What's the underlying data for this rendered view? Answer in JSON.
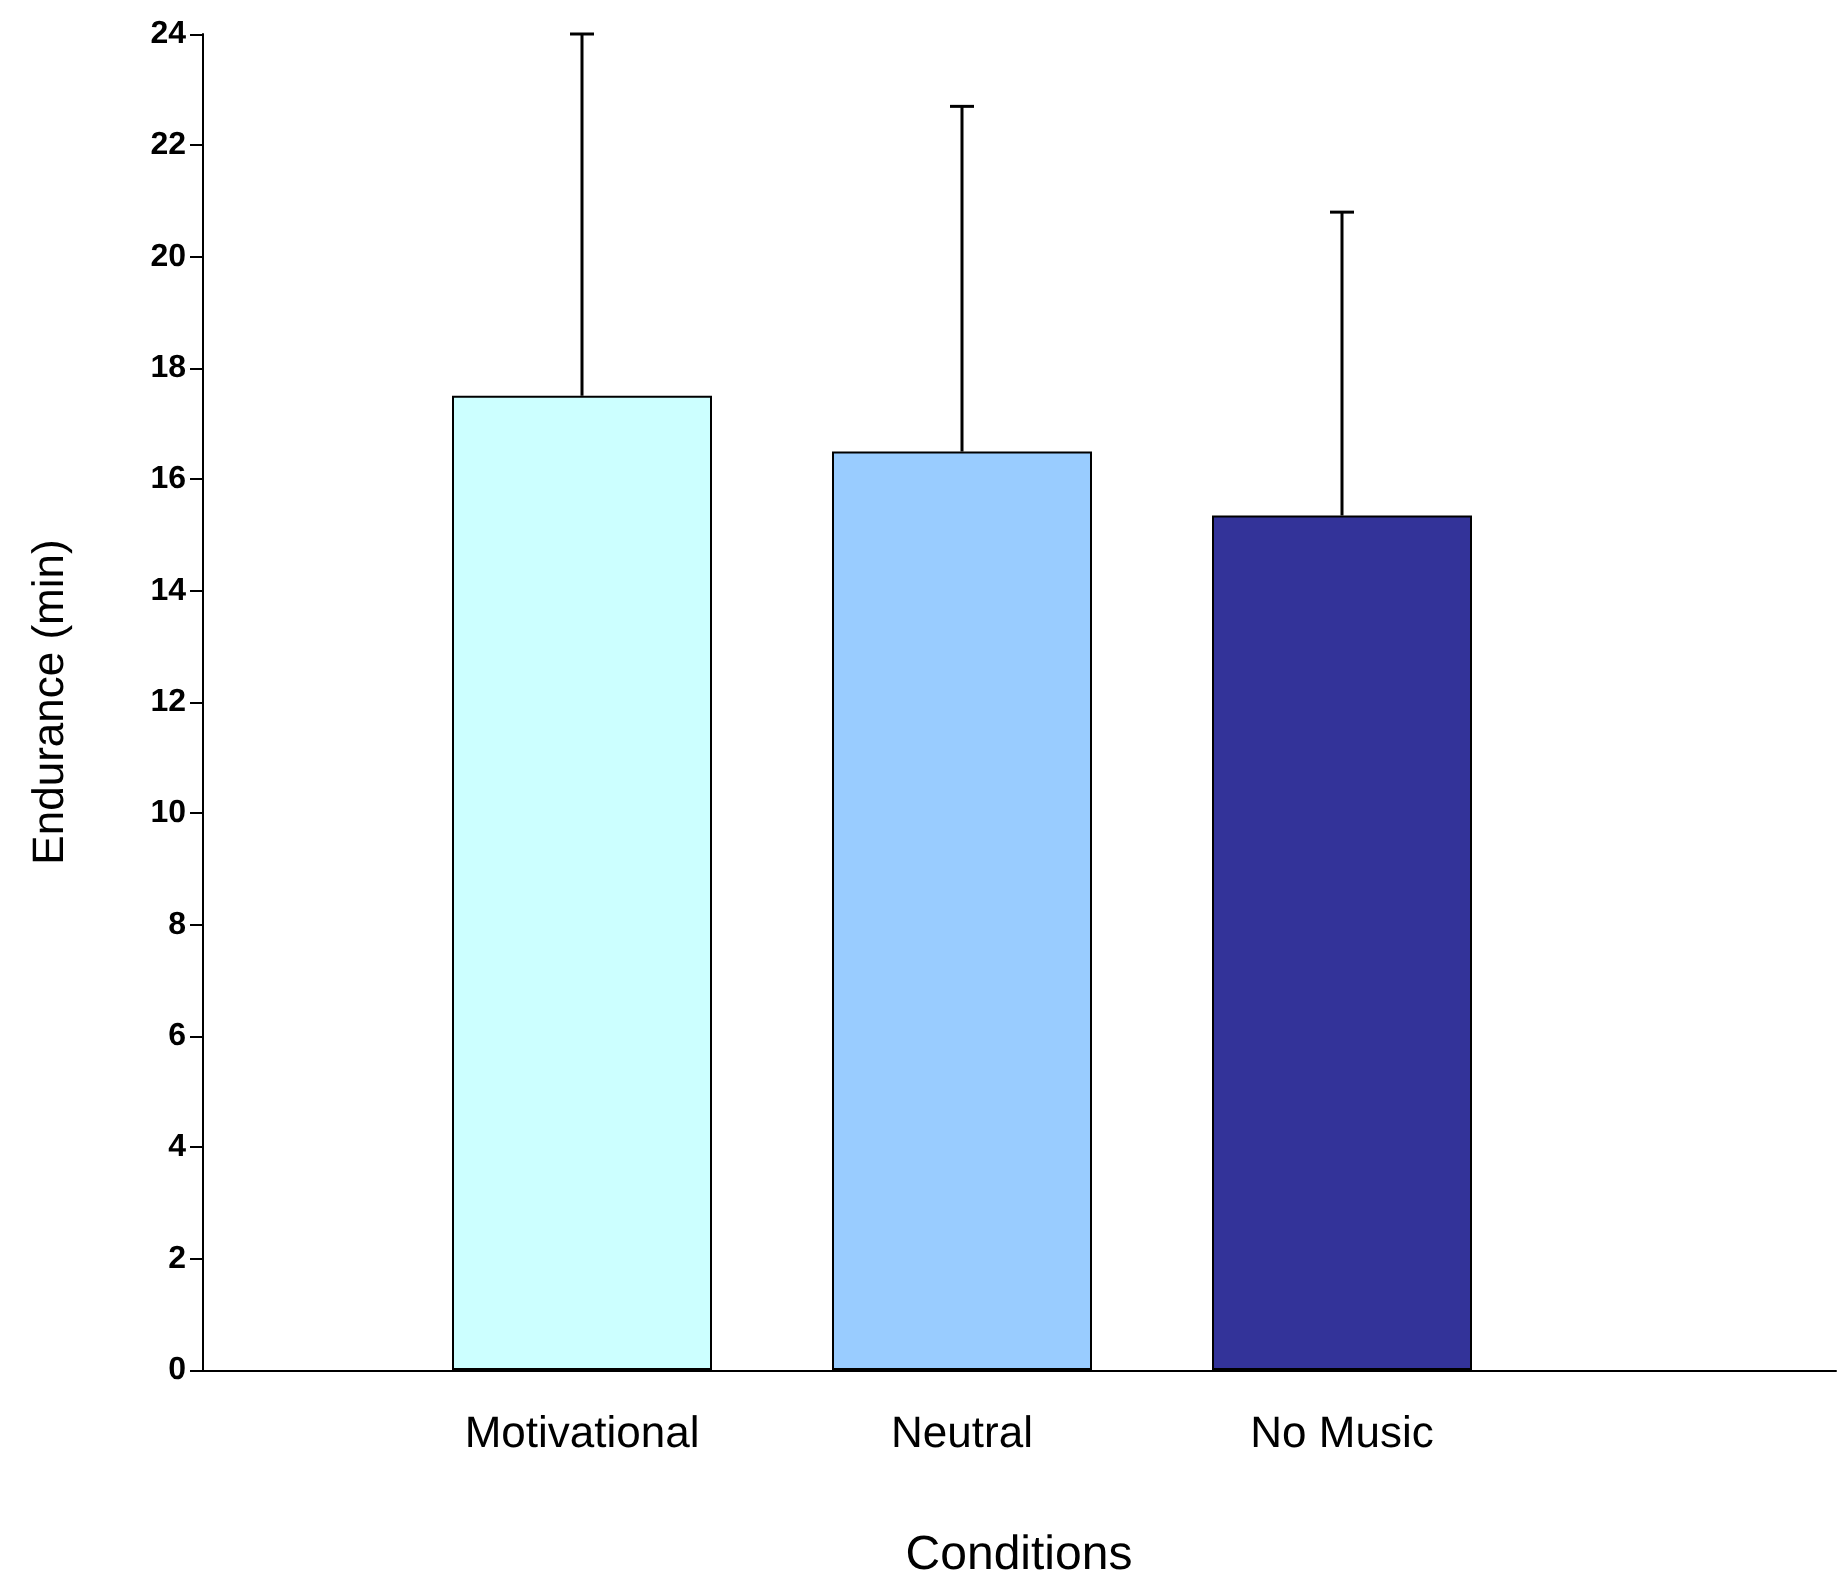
{
  "chart_data": {
    "type": "bar",
    "xlabel": "Conditions",
    "ylabel": "Endurance (min)",
    "categories": [
      "Motivational",
      "Neutral",
      "No Music"
    ],
    "values": [
      17.5,
      16.5,
      15.35
    ],
    "colors": [
      "#ccffff",
      "#99ccff",
      "#333399"
    ],
    "errors": [
      [
        17.5,
        24.0
      ],
      [
        16.5,
        22.7
      ],
      [
        15.35,
        20.8
      ]
    ],
    "ylim": [
      0,
      24
    ],
    "yticks": [
      0,
      2,
      4,
      6,
      8,
      10,
      12,
      14,
      16,
      18,
      20,
      22,
      24
    ],
    "grid": false
  }
}
